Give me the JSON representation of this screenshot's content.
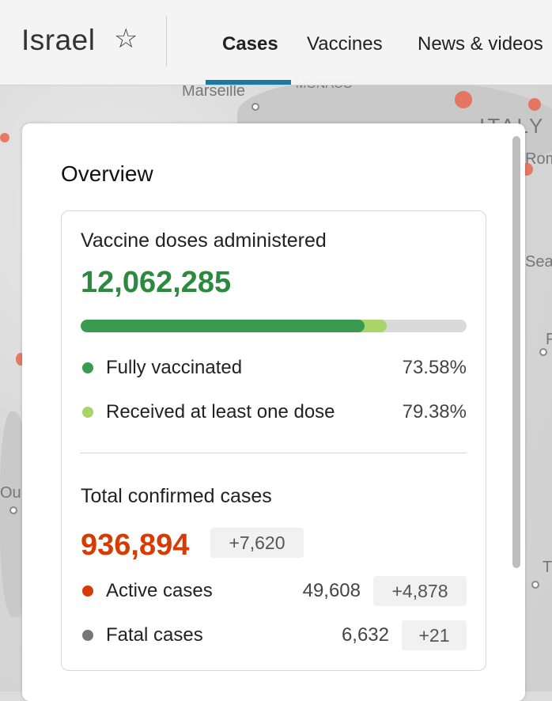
{
  "map": {
    "labels": [
      "Marseille",
      "MONACO",
      "ITALY",
      "Rom",
      "Sea",
      "Ou",
      "T",
      "F"
    ]
  },
  "header": {
    "country": "Israel",
    "favorite_icon": "star-outline-icon",
    "tabs": [
      {
        "label": "Cases",
        "active": true
      },
      {
        "label": "Vaccines",
        "active": false
      },
      {
        "label": "News & videos",
        "active": false
      }
    ],
    "accent_color": "#1a7aa0"
  },
  "overview": {
    "title": "Overview",
    "vaccine": {
      "title": "Vaccine doses administered",
      "total": "12,062,285",
      "total_color": "#2b8a3e",
      "fully_pct": 73.58,
      "atleast_one_pct": 79.38,
      "fully_label": "Fully vaccinated",
      "fully_value": "73.58%",
      "fully_color": "#3a9a4f",
      "atleast_label": "Received at least one dose",
      "atleast_value": "79.38%",
      "atleast_color": "#a9d46a"
    },
    "cases": {
      "title": "Total confirmed cases",
      "total": "936,894",
      "total_color": "#d83b01",
      "total_delta": "+7,620",
      "active_label": "Active cases",
      "active_value": "49,608",
      "active_delta": "+4,878",
      "active_color": "#d83b01",
      "fatal_label": "Fatal cases",
      "fatal_value": "6,632",
      "fatal_delta": "+21",
      "fatal_color": "#777777"
    }
  }
}
